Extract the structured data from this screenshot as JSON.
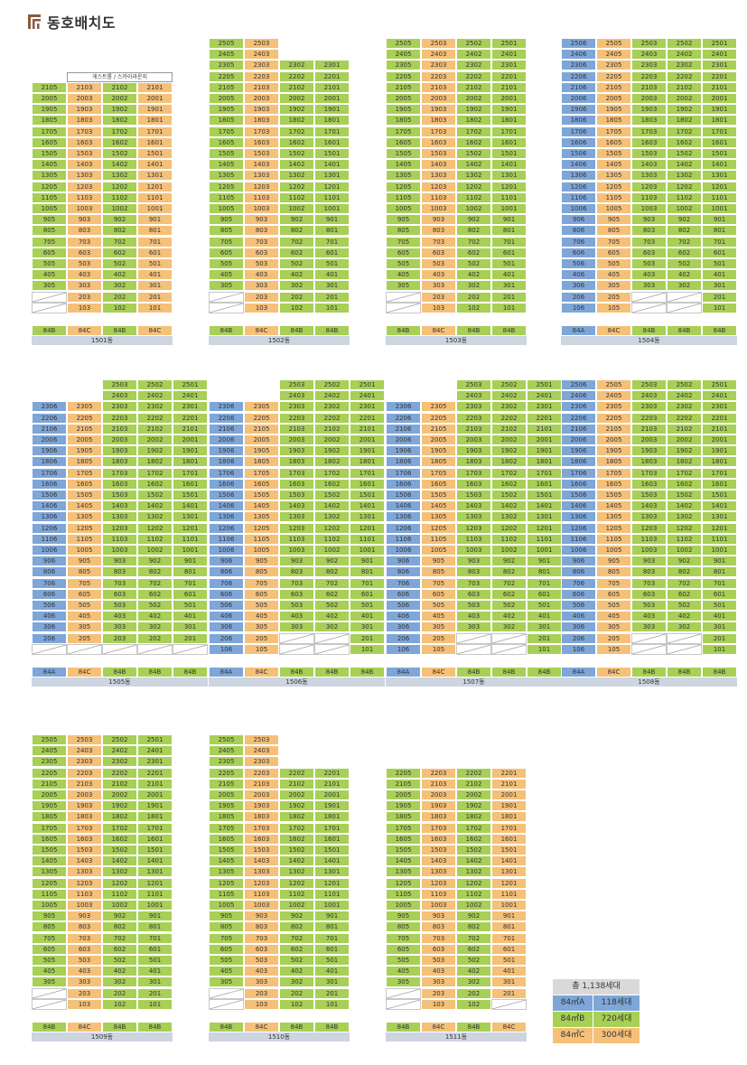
{
  "title": "동호배치도",
  "colors": {
    "84A": "#7ea6d8",
    "84B": "#a8cf56",
    "84C": "#f5c078",
    "building_bar": "#ccd5e0"
  },
  "legend": {
    "total": "총 1,138세대",
    "rows": [
      {
        "type": "84㎡A",
        "count": "118세대",
        "color_key": "A"
      },
      {
        "type": "84㎡B",
        "count": "720세대",
        "color_key": "B"
      },
      {
        "type": "84㎡C",
        "count": "300세대",
        "color_key": "C"
      }
    ]
  },
  "buildings": [
    {
      "name": "1501동",
      "layout": "6",
      "cols": [
        "05",
        "03",
        "02",
        "01"
      ],
      "types": [
        "B",
        "C",
        "B",
        "C"
      ],
      "floors": {
        "start": 3,
        "end": 21
      },
      "empties": [
        [
          1,
          0
        ],
        [
          2,
          0
        ]
      ],
      "lowfloors": [
        2,
        1
      ],
      "note": "게스트룸 / 스카이라운지",
      "noteCols": [
        1,
        3
      ],
      "topStart": 21
    },
    {
      "name": "1502동",
      "layout": "6",
      "cols": [
        "05",
        "03",
        "02",
        "01"
      ],
      "types": [
        "B",
        "C",
        "B",
        "B"
      ],
      "floors": {
        "start": 3,
        "end": 25
      },
      "colTop": [
        25,
        25,
        23,
        23
      ],
      "empties": [
        [
          1,
          0
        ],
        [
          2,
          0
        ]
      ],
      "lowfloors": [
        2,
        1
      ]
    },
    {
      "name": "1503동",
      "layout": "6",
      "cols": [
        "05",
        "03",
        "02",
        "01"
      ],
      "types": [
        "B",
        "C",
        "B",
        "B"
      ],
      "floors": {
        "start": 3,
        "end": 25
      },
      "colTop": [
        25,
        25,
        25,
        25
      ],
      "empties": [
        [
          1,
          0
        ],
        [
          2,
          0
        ]
      ],
      "lowfloors": [
        2,
        1
      ]
    },
    {
      "name": "1504동",
      "layout": "6",
      "cols": [
        "06",
        "05",
        "03",
        "02",
        "01"
      ],
      "types": [
        "A",
        "C",
        "B",
        "B",
        "B"
      ],
      "floors": {
        "start": 1,
        "end": 25
      },
      "colTop": [
        25,
        25,
        25,
        25,
        25
      ],
      "empties": [
        [
          2,
          2
        ],
        [
          1,
          2
        ],
        [
          2,
          3
        ],
        [
          1,
          3
        ]
      ],
      "lowfloors": [
        2,
        1
      ]
    },
    {
      "name": "1505동",
      "layout": "5",
      "cols": [
        "06",
        "05",
        "03",
        "02",
        "01"
      ],
      "types": [
        "A",
        "C",
        "B",
        "B",
        "B"
      ],
      "floors": {
        "start": 2,
        "end": 25
      },
      "colTop": [
        23,
        23,
        25,
        25,
        25
      ],
      "empties": [
        [
          1,
          0
        ],
        [
          1,
          1
        ],
        [
          1,
          2
        ],
        [
          1,
          3
        ],
        [
          1,
          4
        ]
      ],
      "lowfloors": [
        2,
        1
      ]
    },
    {
      "name": "1506동",
      "layout": "5",
      "cols": [
        "06",
        "05",
        "03",
        "02",
        "01"
      ],
      "types": [
        "A",
        "C",
        "B",
        "B",
        "B"
      ],
      "floors": {
        "start": 1,
        "end": 25
      },
      "colTop": [
        23,
        23,
        25,
        25,
        25
      ],
      "empties": [
        [
          2,
          2
        ],
        [
          1,
          2
        ],
        [
          2,
          3
        ],
        [
          1,
          3
        ]
      ],
      "lowfloors": [
        2,
        1
      ]
    },
    {
      "name": "1507동",
      "layout": "5",
      "cols": [
        "06",
        "05",
        "03",
        "02",
        "01"
      ],
      "types": [
        "A",
        "C",
        "B",
        "B",
        "B"
      ],
      "floors": {
        "start": 1,
        "end": 25
      },
      "colTop": [
        23,
        23,
        25,
        25,
        25
      ],
      "empties": [
        [
          2,
          2
        ],
        [
          1,
          2
        ],
        [
          2,
          3
        ],
        [
          1,
          3
        ]
      ],
      "lowfloors": [
        2,
        1
      ]
    },
    {
      "name": "1508동",
      "layout": "5",
      "cols": [
        "06",
        "05",
        "03",
        "02",
        "01"
      ],
      "types": [
        "A",
        "C",
        "B",
        "B",
        "B"
      ],
      "floors": {
        "start": 1,
        "end": 25
      },
      "colTop": [
        25,
        25,
        25,
        25,
        25
      ],
      "empties": [
        [
          2,
          2
        ],
        [
          1,
          2
        ],
        [
          2,
          3
        ],
        [
          1,
          3
        ]
      ],
      "lowfloors": [
        2,
        1
      ]
    },
    {
      "name": "1509동",
      "layout": "7",
      "cols": [
        "05",
        "03",
        "02",
        "01"
      ],
      "types": [
        "B",
        "C",
        "B",
        "B"
      ],
      "floors": {
        "start": 3,
        "end": 25
      },
      "colTop": [
        25,
        25,
        25,
        25
      ],
      "empties": [
        [
          1,
          0
        ],
        [
          2,
          0
        ]
      ],
      "lowfloors": [
        2,
        1
      ]
    },
    {
      "name": "1510동",
      "layout": "7",
      "cols": [
        "05",
        "03",
        "02",
        "01"
      ],
      "types": [
        "B",
        "C",
        "B",
        "B"
      ],
      "floors": {
        "start": 3,
        "end": 25
      },
      "colTop": [
        25,
        25,
        22,
        22
      ],
      "empties": [
        [
          1,
          0
        ],
        [
          2,
          0
        ]
      ],
      "lowfloors": [
        2,
        1
      ]
    },
    {
      "name": "1511동",
      "layout": "7",
      "cols": [
        "05",
        "03",
        "02",
        "01"
      ],
      "types": [
        "B",
        "C",
        "B",
        "C"
      ],
      "floors": {
        "start": 3,
        "end": 22
      },
      "colTop": [
        22,
        22,
        22,
        22
      ],
      "empties": [
        [
          1,
          0
        ],
        [
          2,
          0
        ],
        [
          1,
          3
        ]
      ],
      "lowfloors": [
        2,
        1
      ]
    }
  ],
  "type_labels": {
    "A": "84A",
    "B": "84B",
    "C": "84C"
  }
}
